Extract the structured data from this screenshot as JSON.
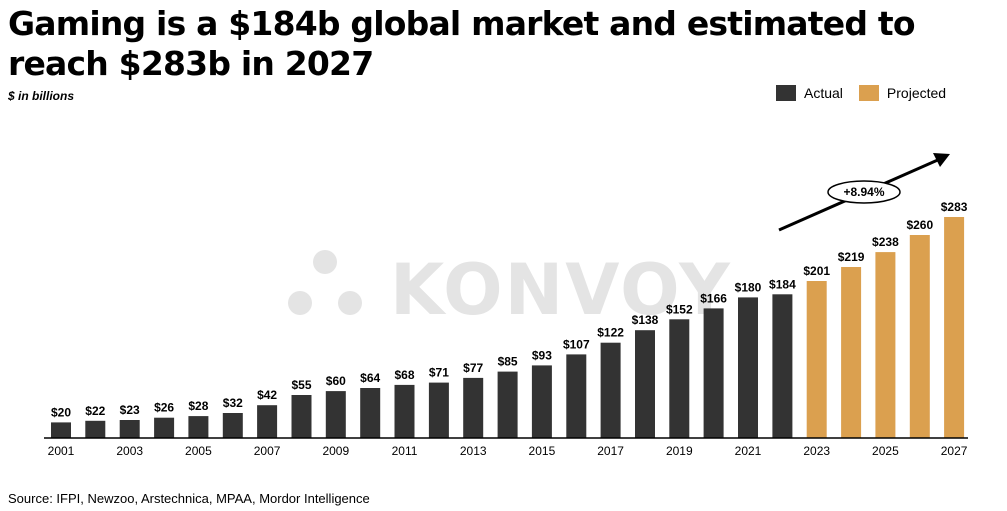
{
  "title": "Gaming is a $184b global market and estimated to reach $283b in 2027",
  "subtitle": "$ in billions",
  "legend": [
    {
      "label": "Actual",
      "color": "#333333"
    },
    {
      "label": "Projected",
      "color": "#DBA04F"
    }
  ],
  "watermark": "KONVOY",
  "source": "Source: IFPI, Newzoo, Arstechnica, MPAA, Mordor Intelligence",
  "colors": {
    "actual": "#333333",
    "projected": "#DBA04F",
    "watermark": "#E4E4E4"
  },
  "chart_data": {
    "type": "bar",
    "title": "Gaming is a $184b global market and estimated to reach $283b in 2027",
    "ylabel": "$ in billions",
    "xlabel": "",
    "ylim": [
      0,
      300
    ],
    "categories": [
      "2001",
      "2002",
      "2003",
      "2004",
      "2005",
      "2006",
      "2007",
      "2008",
      "2009",
      "2010",
      "2011",
      "2012",
      "2013",
      "2014",
      "2015",
      "2016",
      "2017",
      "2018",
      "2019",
      "2020",
      "2021",
      "2022",
      "2023",
      "2024",
      "2025",
      "2026",
      "2027"
    ],
    "x_tick_labels": [
      "2001",
      "2003",
      "2005",
      "2007",
      "2009",
      "2011",
      "2013",
      "2015",
      "2017",
      "2019",
      "2021",
      "2023",
      "2025",
      "2027"
    ],
    "series": [
      {
        "name": "Actual",
        "values": [
          20,
          22,
          23,
          26,
          28,
          32,
          42,
          55,
          60,
          64,
          68,
          71,
          77,
          85,
          93,
          107,
          122,
          138,
          152,
          166,
          180,
          184,
          null,
          null,
          null,
          null,
          null
        ]
      },
      {
        "name": "Projected",
        "values": [
          null,
          null,
          null,
          null,
          null,
          null,
          null,
          null,
          null,
          null,
          null,
          null,
          null,
          null,
          null,
          null,
          null,
          null,
          null,
          null,
          null,
          null,
          201,
          219,
          238,
          260,
          283
        ]
      }
    ],
    "data_labels": [
      "$20",
      "$22",
      "$23",
      "$26",
      "$28",
      "$32",
      "$42",
      "$55",
      "$60",
      "$64",
      "$68",
      "$71",
      "$77",
      "$85",
      "$93",
      "$107",
      "$122",
      "$138",
      "$152",
      "$166",
      "$180",
      "$184",
      "$201",
      "$219",
      "$238",
      "$260",
      "$283"
    ],
    "annotation": {
      "text": "+8.94%",
      "type": "growth-arrow",
      "from": "2023",
      "to": "2027"
    },
    "grid": false,
    "legend_position": "top-right"
  }
}
